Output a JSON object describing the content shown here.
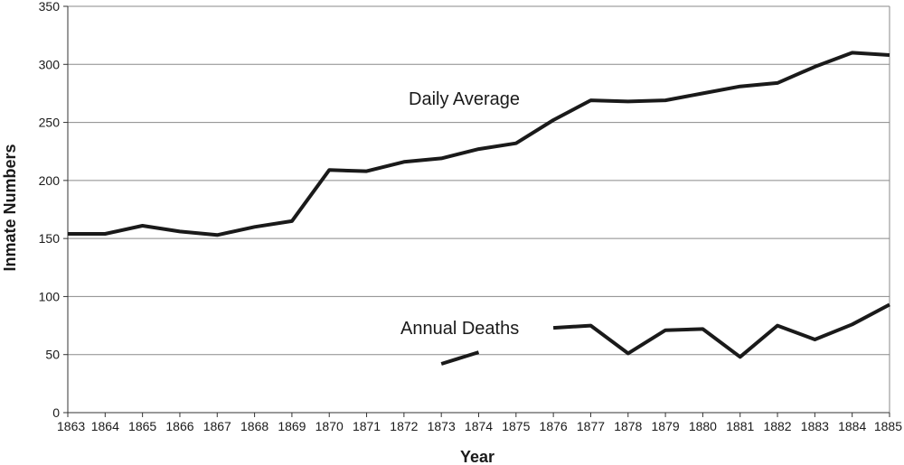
{
  "chart_data": {
    "type": "line",
    "xlabel": "Year",
    "ylabel": "Inmate Numbers",
    "ylim": [
      0,
      350
    ],
    "yticks": [
      0,
      50,
      100,
      150,
      200,
      250,
      300,
      350
    ],
    "x": [
      1863,
      1864,
      1865,
      1866,
      1867,
      1868,
      1869,
      1870,
      1871,
      1872,
      1873,
      1874,
      1875,
      1876,
      1877,
      1878,
      1879,
      1880,
      1881,
      1882,
      1883,
      1884,
      1885
    ],
    "grid": "horizontal",
    "series": [
      {
        "name": "Daily Average",
        "values": [
          154,
          154,
          161,
          156,
          153,
          160,
          165,
          209,
          208,
          216,
          219,
          227,
          232,
          252,
          269,
          268,
          269,
          275,
          281,
          284,
          298,
          310,
          308
        ]
      },
      {
        "name": "Annual Deaths",
        "values": [
          null,
          null,
          null,
          null,
          null,
          null,
          null,
          null,
          null,
          null,
          42,
          52,
          null,
          73,
          75,
          51,
          71,
          72,
          48,
          75,
          63,
          76,
          93
        ]
      }
    ],
    "colors": {
      "line": "#1a1a1a",
      "grid": "#8a8a8a"
    }
  }
}
